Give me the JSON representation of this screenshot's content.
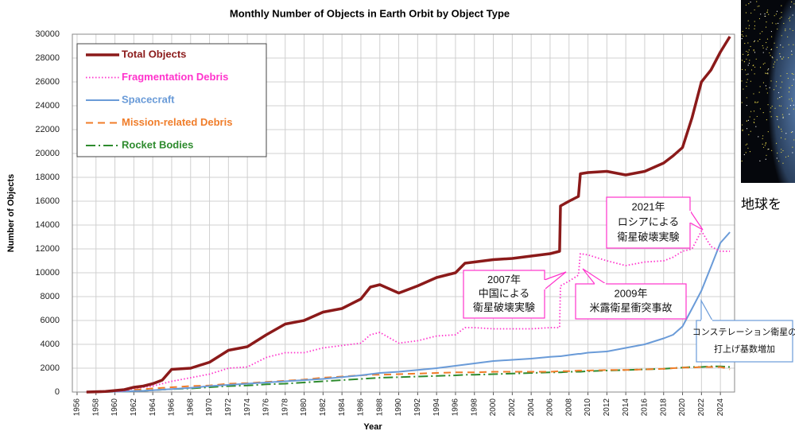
{
  "chart_data": {
    "type": "line",
    "title": "Monthly Number of Objects in Earth Orbit by Object Type",
    "x_label": "Year",
    "y_label": "Number of Objects",
    "x": [
      1957,
      1959,
      1961,
      1962,
      1963,
      1964,
      1965,
      1966,
      1968,
      1970,
      1972,
      1974,
      1976,
      1978,
      1980,
      1982,
      1984,
      1986,
      1987,
      1988,
      1990,
      1992,
      1994,
      1996,
      1997,
      1998,
      2000,
      2002,
      2004,
      2006,
      2007,
      2007.1,
      2008,
      2009,
      2009.2,
      2010,
      2012,
      2014,
      2016,
      2018,
      2019,
      2020,
      2021,
      2022,
      2023,
      2024,
      2025
    ],
    "series": [
      {
        "name": "Total Objects",
        "color": "#8b1a1a",
        "style": "solid",
        "width": 3.5,
        "values": [
          0,
          50,
          200,
          400,
          500,
          700,
          1000,
          1900,
          2000,
          2500,
          3500,
          3800,
          4800,
          5700,
          6000,
          6700,
          7000,
          7800,
          8800,
          9000,
          8300,
          8900,
          9600,
          10000,
          10800,
          10900,
          11100,
          11200,
          11400,
          11600,
          11800,
          15600,
          16000,
          16400,
          18300,
          18400,
          18500,
          18200,
          18500,
          19200,
          19800,
          20500,
          23000,
          26000,
          27000,
          28500,
          29800
        ]
      },
      {
        "name": "Fragmentation Debris",
        "color": "#ff33cc",
        "style": "dotted",
        "width": 1.8,
        "values": [
          0,
          0,
          100,
          300,
          400,
          500,
          700,
          900,
          1200,
          1500,
          2000,
          2100,
          2900,
          3300,
          3300,
          3700,
          3900,
          4100,
          4800,
          5000,
          4100,
          4300,
          4700,
          4800,
          5400,
          5400,
          5300,
          5300,
          5300,
          5400,
          5400,
          8900,
          9300,
          9800,
          11600,
          11500,
          11000,
          10600,
          10900,
          11000,
          11300,
          11800,
          12000,
          13500,
          12200,
          11800,
          11800
        ]
      },
      {
        "name": "Spacecraft",
        "color": "#6a9bd8",
        "style": "solid",
        "width": 2,
        "values": [
          0,
          20,
          50,
          80,
          100,
          150,
          200,
          250,
          350,
          500,
          600,
          700,
          800,
          900,
          1000,
          1100,
          1250,
          1400,
          1500,
          1600,
          1700,
          1850,
          2000,
          2200,
          2300,
          2400,
          2600,
          2700,
          2800,
          2950,
          3000,
          3000,
          3100,
          3200,
          3200,
          3300,
          3400,
          3700,
          4000,
          4500,
          4800,
          5500,
          7000,
          8500,
          10500,
          12500,
          13400
        ]
      },
      {
        "name": "Mission-related Debris",
        "color": "#f07d2a",
        "style": "dashed",
        "width": 2,
        "values": [
          0,
          20,
          100,
          200,
          250,
          300,
          350,
          400,
          500,
          550,
          700,
          750,
          850,
          950,
          1050,
          1200,
          1300,
          1400,
          1450,
          1450,
          1500,
          1550,
          1600,
          1650,
          1650,
          1650,
          1700,
          1700,
          1700,
          1700,
          1750,
          1750,
          1750,
          1800,
          1800,
          1800,
          1850,
          1850,
          1900,
          1950,
          2000,
          2050,
          2050,
          2100,
          2100,
          2100,
          1900
        ]
      },
      {
        "name": "Rocket Bodies",
        "color": "#2e8b2e",
        "style": "dashdot",
        "width": 2,
        "values": [
          0,
          10,
          50,
          80,
          100,
          150,
          200,
          250,
          300,
          400,
          500,
          550,
          650,
          700,
          800,
          900,
          1000,
          1100,
          1150,
          1200,
          1250,
          1300,
          1350,
          1400,
          1450,
          1450,
          1500,
          1550,
          1600,
          1650,
          1650,
          1650,
          1700,
          1700,
          1700,
          1750,
          1800,
          1850,
          1900,
          1950,
          2000,
          2050,
          2100,
          2100,
          2150,
          2150,
          2100
        ]
      }
    ],
    "xlim": [
      1955.5,
      2025.5
    ],
    "xticks": [
      1956,
      1958,
      1960,
      1962,
      1964,
      1966,
      1968,
      1970,
      1972,
      1974,
      1976,
      1978,
      1980,
      1982,
      1984,
      1986,
      1988,
      1990,
      1992,
      1994,
      1996,
      1998,
      2000,
      2002,
      2004,
      2006,
      2008,
      2010,
      2012,
      2014,
      2016,
      2018,
      2020,
      2022,
      2024
    ],
    "ylim": [
      0,
      30000
    ],
    "yticks": [
      0,
      2000,
      4000,
      6000,
      8000,
      10000,
      12000,
      14000,
      16000,
      18000,
      20000,
      22000,
      24000,
      26000,
      28000,
      30000
    ],
    "grid": true,
    "legend": "upper left",
    "annotations": [
      {
        "lines": [
          "2021年",
          "ロシアによる",
          "衛星破壊実験"
        ],
        "color": "#ff33cc"
      },
      {
        "lines": [
          "2007年",
          "中国による",
          "衛星破壊実験"
        ],
        "color": "#ff33cc"
      },
      {
        "lines": [
          "2009年",
          "米露衛星衝突事故"
        ],
        "color": "#ff33cc"
      },
      {
        "lines": [
          "コンステレーション衛星の",
          "打上げ基数増加"
        ],
        "color": "#6a9bd8"
      }
    ]
  },
  "side_caption": "地球を"
}
